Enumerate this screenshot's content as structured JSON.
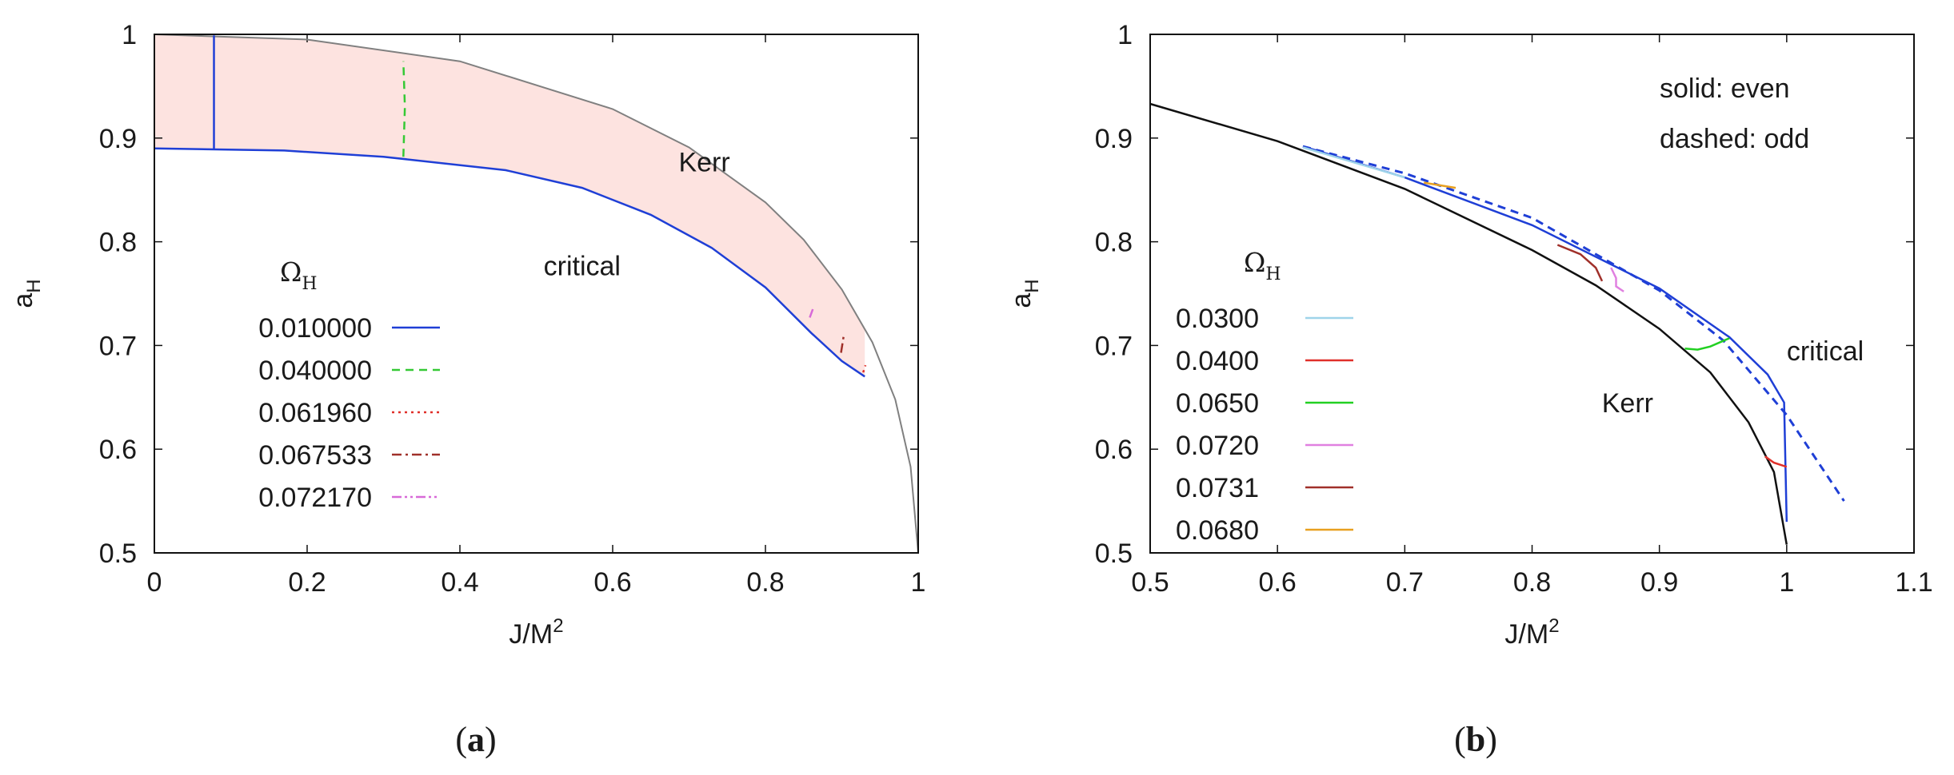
{
  "chart_data": [
    {
      "type": "line",
      "caption": "(a)",
      "caption_letter": "a",
      "xlabel_base": "J/M",
      "xlabel_sup": "2",
      "ylabel_base": "a",
      "ylabel_sub": "H",
      "xlim": [
        0,
        1
      ],
      "ylim": [
        0.5,
        1
      ],
      "xticks": [
        "0",
        "0.2",
        "0.4",
        "0.6",
        "0.8",
        "1"
      ],
      "xtick_values": [
        0,
        0.2,
        0.4,
        0.6,
        0.8,
        1
      ],
      "yticks": [
        "0.5",
        "0.6",
        "0.7",
        "0.8",
        "0.9",
        "1"
      ],
      "ytick_values": [
        0.5,
        0.6,
        0.7,
        0.8,
        0.9,
        1
      ],
      "legend_title_symbol": "Ω",
      "legend_title_sub": "H",
      "legend_placement": "center-left",
      "legend": [
        {
          "label": "0.010000",
          "color": "#1f3fd6",
          "dash": "solid"
        },
        {
          "label": "0.040000",
          "color": "#35c935",
          "dash": "dashed"
        },
        {
          "label": "0.061960",
          "color": "#e0302a",
          "dash": "dotted"
        },
        {
          "label": "0.067533",
          "color": "#a0302a",
          "dash": "dashdot"
        },
        {
          "label": "0.072170",
          "color": "#d86ad8",
          "dash": "dashdotdot"
        }
      ],
      "annotations": [
        {
          "text": "Kerr",
          "x": 0.72,
          "y": 0.877
        },
        {
          "text": "critical",
          "x": 0.56,
          "y": 0.777
        }
      ],
      "kerr_curve": {
        "name": "Kerr",
        "color": "#808080",
        "x": [
          0,
          0.2,
          0.4,
          0.6,
          0.7,
          0.8,
          0.85,
          0.9,
          0.94,
          0.97,
          0.99,
          1.0
        ],
        "y": [
          1.0,
          0.995,
          0.974,
          0.928,
          0.891,
          0.838,
          0.802,
          0.754,
          0.703,
          0.648,
          0.583,
          0.5
        ]
      },
      "critical_curve": {
        "name": "critical",
        "color": "#1f3fd6",
        "x": [
          0,
          0.17,
          0.3,
          0.46,
          0.56,
          0.65,
          0.73,
          0.8,
          0.86,
          0.9,
          0.93
        ],
        "y": [
          0.89,
          0.888,
          0.882,
          0.869,
          0.852,
          0.826,
          0.794,
          0.756,
          0.712,
          0.685,
          0.67
        ]
      },
      "series": [
        {
          "name": "0.010000",
          "color": "#1f3fd6",
          "dash": "solid",
          "x": [
            0.078,
            0.078
          ],
          "y": [
            0.889,
            0.999
          ]
        },
        {
          "name": "0.040000",
          "color": "#35c935",
          "dash": "dashed",
          "x": [
            0.326,
            0.328,
            0.326
          ],
          "y": [
            0.882,
            0.93,
            0.974
          ]
        },
        {
          "name": "0.061960",
          "color": "#e0302a",
          "dash": "dotted",
          "x": [
            0.928,
            0.931
          ],
          "y": [
            0.674,
            0.681
          ]
        },
        {
          "name": "0.067533",
          "color": "#a0302a",
          "dash": "dashdot",
          "x": [
            0.899,
            0.903
          ],
          "y": [
            0.693,
            0.712
          ]
        },
        {
          "name": "0.072170",
          "color": "#d86ad8",
          "dash": "dashdotdot",
          "x": [
            0.858,
            0.862
          ],
          "y": [
            0.727,
            0.735
          ]
        }
      ]
    },
    {
      "type": "line",
      "caption": "(b)",
      "caption_letter": "b",
      "xlabel_base": "J/M",
      "xlabel_sup": "2",
      "ylabel_base": "a",
      "ylabel_sub": "H",
      "xlim": [
        0.5,
        1.1
      ],
      "ylim": [
        0.5,
        1
      ],
      "xticks": [
        "0.5",
        "0.6",
        "0.7",
        "0.8",
        "0.9",
        "1",
        "1.1"
      ],
      "xtick_values": [
        0.5,
        0.6,
        0.7,
        0.8,
        0.9,
        1.0,
        1.1
      ],
      "yticks": [
        "0.5",
        "0.6",
        "0.7",
        "0.8",
        "0.9",
        "1"
      ],
      "ytick_values": [
        0.5,
        0.6,
        0.7,
        0.8,
        0.9,
        1
      ],
      "legend_title_symbol": "Ω",
      "legend_title_sub": "H",
      "legend_placement": "left",
      "style_note_solid": "solid: even",
      "style_note_dashed": "dashed: odd",
      "legend": [
        {
          "label": "0.0300",
          "color": "#9fd4ea",
          "dash": "solid"
        },
        {
          "label": "0.0400",
          "color": "#e0302a",
          "dash": "solid"
        },
        {
          "label": "0.0650",
          "color": "#22d022",
          "dash": "solid"
        },
        {
          "label": "0.0720",
          "color": "#e080e0",
          "dash": "solid"
        },
        {
          "label": "0.0731",
          "color": "#a0302a",
          "dash": "solid"
        },
        {
          "label": "0.0680",
          "color": "#e8a020",
          "dash": "solid"
        }
      ],
      "annotations": [
        {
          "text": "Kerr",
          "x": 0.875,
          "y": 0.645
        },
        {
          "text": "critical",
          "x": 1.0,
          "y": 0.695
        }
      ],
      "kerr_curve": {
        "name": "Kerr",
        "color": "#111111",
        "x": [
          0.5,
          0.6,
          0.7,
          0.8,
          0.85,
          0.9,
          0.94,
          0.97,
          0.99,
          1.0
        ],
        "y": [
          0.933,
          0.897,
          0.851,
          0.792,
          0.758,
          0.716,
          0.674,
          0.626,
          0.578,
          0.508
        ]
      },
      "critical_even": {
        "name": "critical (even)",
        "color": "#1f3fd6",
        "dash": "solid",
        "x": [
          0.62,
          0.7,
          0.8,
          0.9,
          0.955,
          0.985,
          0.998,
          1.0
        ],
        "y": [
          0.892,
          0.862,
          0.816,
          0.755,
          0.708,
          0.672,
          0.645,
          0.53
        ]
      },
      "critical_odd": {
        "name": "critical (odd)",
        "color": "#1f3fd6",
        "dash": "dashed",
        "x": [
          0.62,
          0.7,
          0.8,
          0.9,
          0.95,
          1.0,
          1.045
        ],
        "y": [
          0.892,
          0.866,
          0.823,
          0.753,
          0.705,
          0.633,
          0.55
        ]
      },
      "series": [
        {
          "name": "0.0300",
          "color": "#9fd4ea",
          "x": [
            0.62,
            0.7
          ],
          "y": [
            0.891,
            0.862
          ]
        },
        {
          "name": "0.0400",
          "color": "#e0302a",
          "x": [
            0.983,
            0.99,
            1.0
          ],
          "y": [
            0.593,
            0.587,
            0.583
          ]
        },
        {
          "name": "0.0650",
          "color": "#22d022",
          "x": [
            0.92,
            0.93,
            0.94,
            0.955
          ],
          "y": [
            0.697,
            0.696,
            0.699,
            0.707
          ]
        },
        {
          "name": "0.0720",
          "color": "#e080e0",
          "x": [
            0.862,
            0.866,
            0.866,
            0.872
          ],
          "y": [
            0.775,
            0.765,
            0.757,
            0.752
          ]
        },
        {
          "name": "0.0731",
          "color": "#a0302a",
          "x": [
            0.82,
            0.838,
            0.85,
            0.855
          ],
          "y": [
            0.797,
            0.788,
            0.775,
            0.762
          ]
        },
        {
          "name": "0.0680",
          "color": "#e8a020",
          "x": [
            0.715,
            0.74
          ],
          "y": [
            0.857,
            0.852
          ]
        }
      ]
    }
  ]
}
